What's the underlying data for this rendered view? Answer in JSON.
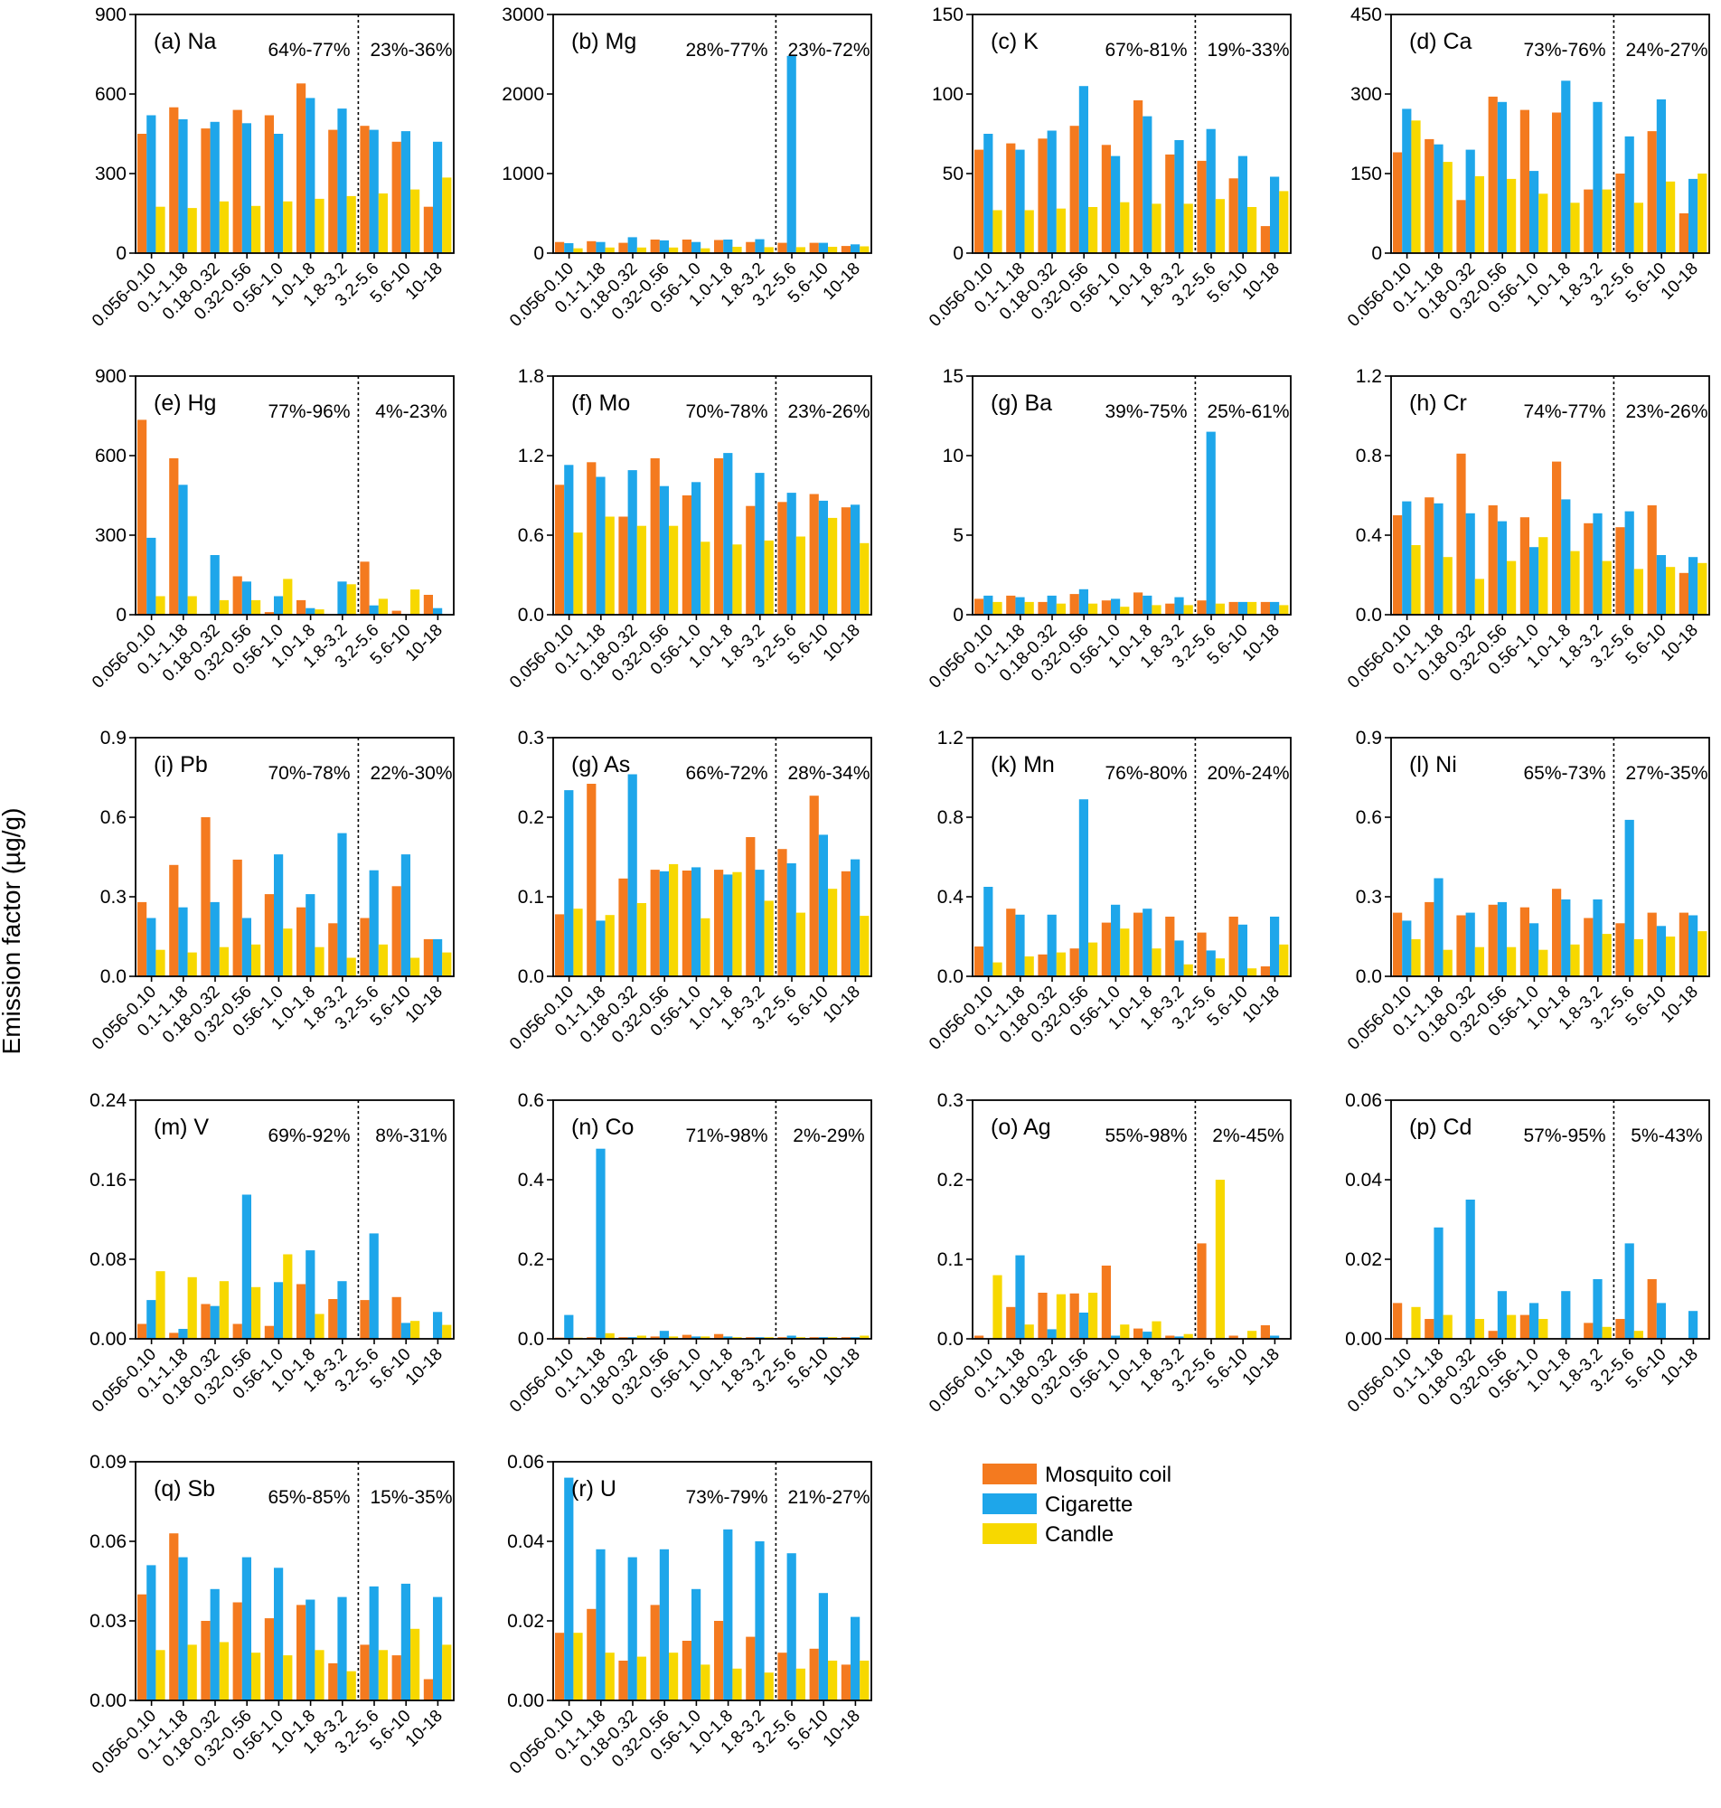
{
  "y_axis_label": "Emission factor (µg/g)",
  "colors": {
    "mosquito_coil": "#f47a1f",
    "cigarette": "#1ea6ea",
    "candle": "#f7d800"
  },
  "legend": [
    {
      "label": "Mosquito coil",
      "color_key": "mosquito_coil"
    },
    {
      "label": "Cigarette",
      "color_key": "cigarette"
    },
    {
      "label": "Candle",
      "color_key": "candle"
    }
  ],
  "chart_data": {
    "type": "bar",
    "categories": [
      "0.056-0.10",
      "0.1-1.18",
      "0.18-0.32",
      "0.32-0.56",
      "0.56-1.0",
      "1.0-1.8",
      "1.8-3.2",
      "3.2-5.6",
      "5.6-10",
      "10-18"
    ],
    "series_names": [
      "Mosquito coil",
      "Cigarette",
      "Candle"
    ],
    "divider_after_category": "1.8-3.2",
    "panels": [
      {
        "title": "(a) Na",
        "ylim": [
          0,
          900
        ],
        "ticks": [
          "0",
          "300",
          "600",
          "900"
        ],
        "pct_left": "64%-77%",
        "pct_right": "23%-36%",
        "series": [
          [
            450,
            550,
            470,
            540,
            520,
            640,
            465,
            480,
            420,
            175
          ],
          [
            520,
            505,
            495,
            490,
            450,
            585,
            545,
            465,
            460,
            420
          ],
          [
            175,
            170,
            195,
            178,
            195,
            205,
            215,
            225,
            240,
            285
          ]
        ]
      },
      {
        "title": "(b) Mg",
        "ylim": [
          0,
          3000
        ],
        "ticks": [
          "0",
          "1000",
          "2000",
          "3000"
        ],
        "pct_left": "28%-77%",
        "pct_right": "23%-72%",
        "series": [
          [
            140,
            150,
            130,
            170,
            170,
            165,
            140,
            130,
            130,
            90
          ],
          [
            125,
            140,
            200,
            160,
            140,
            170,
            175,
            2480,
            130,
            110
          ],
          [
            60,
            70,
            70,
            70,
            60,
            80,
            75,
            75,
            80,
            85
          ]
        ]
      },
      {
        "title": "(c) K",
        "ylim": [
          0,
          150
        ],
        "ticks": [
          "0",
          "50",
          "100",
          "150"
        ],
        "pct_left": "67%-81%",
        "pct_right": "19%-33%",
        "series": [
          [
            65,
            69,
            72,
            80,
            68,
            96,
            62,
            58,
            47,
            17
          ],
          [
            75,
            65,
            77,
            105,
            61,
            86,
            71,
            78,
            61,
            48
          ],
          [
            27,
            27,
            28,
            29,
            32,
            31,
            31,
            34,
            29,
            39
          ]
        ]
      },
      {
        "title": "(d) Ca",
        "ylim": [
          0,
          450
        ],
        "ticks": [
          "0",
          "150",
          "300",
          "450"
        ],
        "pct_left": "73%-76%",
        "pct_right": "24%-27%",
        "series": [
          [
            190,
            215,
            100,
            295,
            270,
            265,
            120,
            150,
            230,
            75
          ],
          [
            272,
            205,
            195,
            285,
            155,
            325,
            285,
            220,
            290,
            140
          ],
          [
            250,
            172,
            145,
            140,
            112,
            95,
            120,
            95,
            135,
            150
          ]
        ]
      },
      {
        "title": "(e) Hg",
        "ylim": [
          0,
          900
        ],
        "ticks": [
          "0",
          "300",
          "600",
          "900"
        ],
        "pct_left": "77%-96%",
        "pct_right": "4%-23%",
        "series": [
          [
            735,
            590,
            0,
            145,
            10,
            55,
            0,
            200,
            15,
            75
          ],
          [
            290,
            490,
            225,
            125,
            70,
            25,
            125,
            35,
            0,
            25
          ],
          [
            70,
            70,
            55,
            55,
            135,
            20,
            115,
            60,
            95,
            0
          ]
        ]
      },
      {
        "title": "(f) Mo",
        "ylim": [
          0,
          1.8
        ],
        "ticks": [
          "0.0",
          "0.6",
          "1.2",
          "1.8"
        ],
        "pct_left": "70%-78%",
        "pct_right": "23%-26%",
        "series": [
          [
            0.98,
            1.15,
            0.74,
            1.18,
            0.9,
            1.18,
            0.82,
            0.85,
            0.91,
            0.81
          ],
          [
            1.13,
            1.04,
            1.09,
            0.97,
            1.0,
            1.22,
            1.07,
            0.92,
            0.86,
            0.83
          ],
          [
            0.62,
            0.74,
            0.67,
            0.67,
            0.55,
            0.53,
            0.56,
            0.59,
            0.73,
            0.54
          ]
        ]
      },
      {
        "title": "(g) Ba",
        "ylim": [
          0,
          15
        ],
        "ticks": [
          "0",
          "5",
          "10",
          "15"
        ],
        "pct_left": "39%-75%",
        "pct_right": "25%-61%",
        "series": [
          [
            1.0,
            1.2,
            0.8,
            1.3,
            0.9,
            1.4,
            0.7,
            0.9,
            0.8,
            0.8
          ],
          [
            1.2,
            1.1,
            1.2,
            1.6,
            1.0,
            1.2,
            1.1,
            11.5,
            0.8,
            0.8
          ],
          [
            0.8,
            0.8,
            0.7,
            0.7,
            0.5,
            0.6,
            0.6,
            0.7,
            0.8,
            0.6
          ]
        ]
      },
      {
        "title": "(h) Cr",
        "ylim": [
          0,
          1.2
        ],
        "ticks": [
          "0.0",
          "0.4",
          "0.8",
          "1.2"
        ],
        "pct_left": "74%-77%",
        "pct_right": "23%-26%",
        "series": [
          [
            0.5,
            0.59,
            0.81,
            0.55,
            0.49,
            0.77,
            0.46,
            0.44,
            0.55,
            0.21
          ],
          [
            0.57,
            0.56,
            0.51,
            0.47,
            0.34,
            0.58,
            0.51,
            0.52,
            0.3,
            0.29
          ],
          [
            0.35,
            0.29,
            0.18,
            0.27,
            0.39,
            0.32,
            0.27,
            0.23,
            0.24,
            0.26
          ]
        ]
      },
      {
        "title": "(i) Pb",
        "ylim": [
          0,
          0.9
        ],
        "ticks": [
          "0.0",
          "0.3",
          "0.6",
          "0.9"
        ],
        "pct_left": "70%-78%",
        "pct_right": "22%-30%",
        "series": [
          [
            0.28,
            0.42,
            0.6,
            0.44,
            0.31,
            0.26,
            0.2,
            0.22,
            0.34,
            0.14
          ],
          [
            0.22,
            0.26,
            0.28,
            0.22,
            0.46,
            0.31,
            0.54,
            0.4,
            0.46,
            0.14
          ],
          [
            0.1,
            0.09,
            0.11,
            0.12,
            0.18,
            0.11,
            0.07,
            0.12,
            0.07,
            0.09
          ]
        ]
      },
      {
        "title": "(g) As",
        "ylim": [
          0,
          0.3
        ],
        "ticks": [
          "0.0",
          "0.1",
          "0.2",
          "0.3"
        ],
        "pct_left": "66%-72%",
        "pct_right": "28%-34%",
        "series": [
          [
            0.078,
            0.242,
            0.123,
            0.134,
            0.133,
            0.134,
            0.175,
            0.16,
            0.227,
            0.132
          ],
          [
            0.234,
            0.07,
            0.254,
            0.132,
            0.137,
            0.128,
            0.134,
            0.142,
            0.178,
            0.147
          ],
          [
            0.085,
            0.077,
            0.092,
            0.141,
            0.073,
            0.131,
            0.095,
            0.08,
            0.11,
            0.076
          ]
        ]
      },
      {
        "title": "(k) Mn",
        "ylim": [
          0,
          1.2
        ],
        "ticks": [
          "0.0",
          "0.4",
          "0.8",
          "1.2"
        ],
        "pct_left": "76%-80%",
        "pct_right": "20%-24%",
        "series": [
          [
            0.15,
            0.34,
            0.11,
            0.14,
            0.27,
            0.32,
            0.3,
            0.22,
            0.3,
            0.05
          ],
          [
            0.45,
            0.31,
            0.31,
            0.89,
            0.36,
            0.34,
            0.18,
            0.13,
            0.26,
            0.3
          ],
          [
            0.07,
            0.1,
            0.12,
            0.17,
            0.24,
            0.14,
            0.06,
            0.09,
            0.04,
            0.16
          ]
        ]
      },
      {
        "title": "(l) Ni",
        "ylim": [
          0,
          0.9
        ],
        "ticks": [
          "0.0",
          "0.3",
          "0.6",
          "0.9"
        ],
        "pct_left": "65%-73%",
        "pct_right": "27%-35%",
        "series": [
          [
            0.24,
            0.28,
            0.23,
            0.27,
            0.26,
            0.33,
            0.22,
            0.2,
            0.24,
            0.24
          ],
          [
            0.21,
            0.37,
            0.24,
            0.28,
            0.2,
            0.29,
            0.29,
            0.59,
            0.19,
            0.23
          ],
          [
            0.14,
            0.1,
            0.11,
            0.11,
            0.1,
            0.12,
            0.16,
            0.14,
            0.15,
            0.17
          ]
        ]
      },
      {
        "title": "(m) V",
        "ylim": [
          0,
          0.24
        ],
        "ticks": [
          "0.00",
          "0.08",
          "0.16",
          "0.24"
        ],
        "pct_left": "69%-92%",
        "pct_right": "8%-31%",
        "series": [
          [
            0.015,
            0.006,
            0.035,
            0.015,
            0.013,
            0.055,
            0.04,
            0.039,
            0.042,
            0.0
          ],
          [
            0.039,
            0.01,
            0.033,
            0.145,
            0.057,
            0.089,
            0.058,
            0.106,
            0.016,
            0.027
          ],
          [
            0.068,
            0.062,
            0.058,
            0.052,
            0.085,
            0.025,
            0.0,
            0.0,
            0.018,
            0.014
          ]
        ]
      },
      {
        "title": "(n) Co",
        "ylim": [
          0,
          0.6
        ],
        "ticks": [
          "0.0",
          "0.2",
          "0.4",
          "0.6"
        ],
        "pct_left": "71%-98%",
        "pct_right": "2%-29%",
        "series": [
          [
            0.003,
            0.004,
            0.004,
            0.006,
            0.01,
            0.012,
            0.004,
            0.004,
            0.004,
            0.004
          ],
          [
            0.06,
            0.478,
            0.004,
            0.02,
            0.006,
            0.006,
            0.004,
            0.008,
            0.004,
            0.004
          ],
          [
            0.003,
            0.014,
            0.008,
            0.006,
            0.006,
            0.004,
            0.004,
            0.004,
            0.004,
            0.008
          ]
        ]
      },
      {
        "title": "(o) Ag",
        "ylim": [
          0,
          0.3
        ],
        "ticks": [
          "0.0",
          "0.1",
          "0.2",
          "0.3"
        ],
        "pct_left": "55%-98%",
        "pct_right": "2%-45%",
        "series": [
          [
            0.004,
            0.04,
            0.058,
            0.057,
            0.092,
            0.013,
            0.004,
            0.12,
            0.004,
            0.017
          ],
          [
            0.0,
            0.105,
            0.012,
            0.033,
            0.004,
            0.009,
            0.003,
            0.0,
            0.0,
            0.004
          ],
          [
            0.08,
            0.018,
            0.056,
            0.058,
            0.018,
            0.022,
            0.006,
            0.2,
            0.01,
            0.0
          ]
        ]
      },
      {
        "title": "(p) Cd",
        "ylim": [
          0,
          0.06
        ],
        "ticks": [
          "0.00",
          "0.02",
          "0.04",
          "0.06"
        ],
        "pct_left": "57%-95%",
        "pct_right": "5%-43%",
        "series": [
          [
            0.009,
            0.005,
            0.0,
            0.002,
            0.006,
            0.0,
            0.004,
            0.005,
            0.015,
            0.0
          ],
          [
            0.0,
            0.028,
            0.035,
            0.012,
            0.009,
            0.012,
            0.015,
            0.024,
            0.009,
            0.007
          ],
          [
            0.008,
            0.006,
            0.005,
            0.006,
            0.005,
            0.0,
            0.003,
            0.002,
            0.0,
            0.0
          ]
        ]
      },
      {
        "title": "(q) Sb",
        "ylim": [
          0,
          0.09
        ],
        "ticks": [
          "0.00",
          "0.03",
          "0.06",
          "0.09"
        ],
        "pct_left": "65%-85%",
        "pct_right": "15%-35%",
        "series": [
          [
            0.04,
            0.063,
            0.03,
            0.037,
            0.031,
            0.036,
            0.014,
            0.021,
            0.017,
            0.008
          ],
          [
            0.051,
            0.054,
            0.042,
            0.054,
            0.05,
            0.038,
            0.039,
            0.043,
            0.044,
            0.039
          ],
          [
            0.019,
            0.021,
            0.022,
            0.018,
            0.017,
            0.019,
            0.011,
            0.019,
            0.027,
            0.021
          ]
        ]
      },
      {
        "title": "(r) U",
        "ylim": [
          0,
          0.06
        ],
        "ticks": [
          "0.00",
          "0.02",
          "0.04",
          "0.06"
        ],
        "pct_left": "73%-79%",
        "pct_right": "21%-27%",
        "series": [
          [
            0.017,
            0.023,
            0.01,
            0.024,
            0.015,
            0.02,
            0.016,
            0.012,
            0.013,
            0.009
          ],
          [
            0.056,
            0.038,
            0.036,
            0.038,
            0.028,
            0.043,
            0.04,
            0.037,
            0.027,
            0.021
          ],
          [
            0.017,
            0.012,
            0.011,
            0.012,
            0.009,
            0.008,
            0.007,
            0.008,
            0.01,
            0.01
          ]
        ]
      }
    ]
  }
}
